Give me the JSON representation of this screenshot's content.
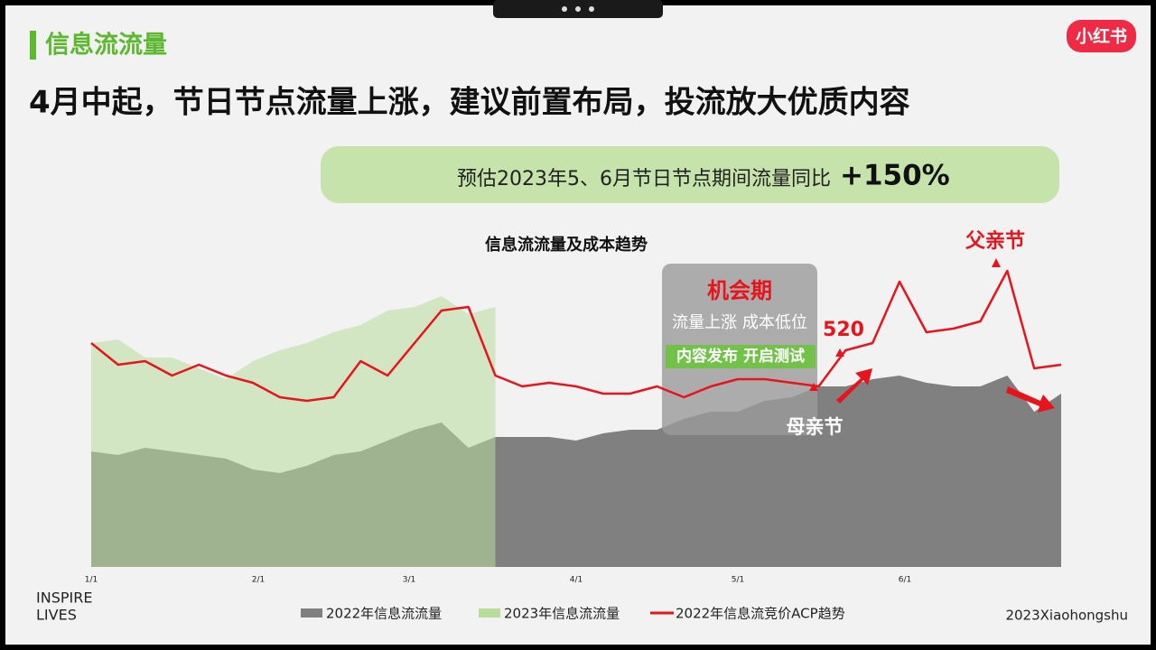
{
  "header": {
    "title": "信息流流量",
    "logo": "小红书"
  },
  "headline": "4月中起，节日节点流量上涨，建议前置布局，投流放大优质内容",
  "banner": {
    "text": "预估2023年5、6月节日节点期间流量同比",
    "highlight": "+150%"
  },
  "annotations": {
    "window_title": "机会期",
    "window_text": "流量上涨 成本低位",
    "window_action": "内容发布 开启测试",
    "d520": "520",
    "mothers_day": "母亲节",
    "fathers_day": "父亲节"
  },
  "footer": {
    "left": [
      "INSPIRE",
      "LIVES"
    ],
    "right": "2023Xiaohongshu"
  },
  "chart_data": {
    "type": "area-line",
    "title": "信息流流量及成本趋势",
    "x": [
      0,
      5,
      10,
      15,
      20,
      25,
      30,
      35,
      40,
      45,
      50,
      55,
      60,
      65,
      70,
      75,
      80,
      85,
      90,
      95,
      100,
      105,
      110,
      115,
      120,
      125,
      130,
      135,
      140,
      145,
      150,
      155,
      160,
      165,
      170,
      175,
      180
    ],
    "xlim": [
      0,
      180
    ],
    "xticks": [
      {
        "value": 0,
        "label": "1/1"
      },
      {
        "value": 31,
        "label": "2/1"
      },
      {
        "value": 59,
        "label": "3/1"
      },
      {
        "value": 90,
        "label": "4/1"
      },
      {
        "value": 120,
        "label": "5/1"
      },
      {
        "value": 151,
        "label": "6/1"
      }
    ],
    "ylim": [
      0,
      100
    ],
    "series": [
      {
        "name": "2022年信息流流量",
        "color": "#808080",
        "kind": "area",
        "values": [
          32,
          31,
          33,
          32,
          31,
          30,
          27,
          26,
          28,
          31,
          32,
          35,
          38,
          40,
          33,
          36,
          36,
          36,
          35,
          37,
          38,
          38,
          41,
          43,
          43,
          46,
          47,
          50,
          50,
          52,
          53,
          51,
          50,
          50,
          53,
          43,
          48
        ]
      },
      {
        "name": "2023年信息流流量",
        "color": "#b8dc9c",
        "kind": "area",
        "values": [
          62,
          63,
          58,
          58,
          55,
          52,
          57,
          60,
          62,
          65,
          67,
          71,
          72,
          75,
          70,
          72,
          null,
          null,
          null,
          null,
          null,
          null,
          null,
          null,
          null,
          null,
          null,
          null,
          null,
          null,
          null,
          null,
          null,
          null,
          null,
          null,
          null
        ]
      },
      {
        "name": "2022年信息流竞价ACP趋势",
        "color": "#e8141c",
        "kind": "line",
        "values": [
          62,
          56,
          57,
          53,
          56,
          53,
          51,
          47,
          46,
          47,
          57,
          53,
          62,
          71,
          72,
          53,
          50,
          51,
          50,
          48,
          48,
          50,
          47,
          50,
          52,
          52,
          51,
          50,
          60,
          62,
          79,
          65,
          66,
          68,
          82,
          55,
          56
        ]
      }
    ]
  }
}
